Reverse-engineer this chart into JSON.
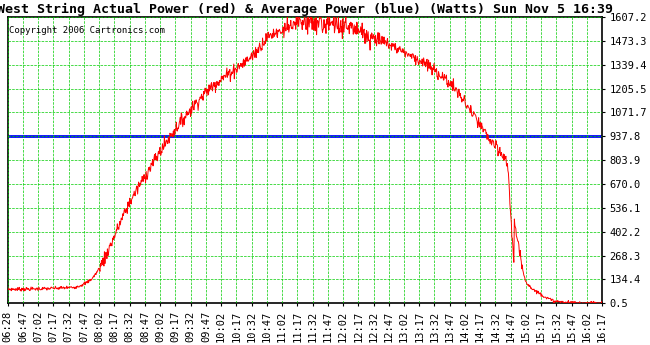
{
  "title": "West String Actual Power (red) & Average Power (blue) (Watts) Sun Nov 5 16:39",
  "copyright": "Copyright 2006 Cartronics.com",
  "y_ticks": [
    0.5,
    134.4,
    268.3,
    402.2,
    536.1,
    670.0,
    803.9,
    937.8,
    1071.7,
    1205.5,
    1339.4,
    1473.3,
    1607.2
  ],
  "y_min": 0.5,
  "y_max": 1607.2,
  "avg_power": 937.8,
  "x_labels": [
    "06:28",
    "06:47",
    "07:02",
    "07:17",
    "07:32",
    "07:47",
    "08:02",
    "08:17",
    "08:32",
    "08:47",
    "09:02",
    "09:17",
    "09:32",
    "09:47",
    "10:02",
    "10:17",
    "10:32",
    "10:47",
    "11:02",
    "11:17",
    "11:32",
    "11:47",
    "12:02",
    "12:17",
    "12:32",
    "12:47",
    "13:02",
    "13:17",
    "13:32",
    "13:47",
    "14:02",
    "14:17",
    "14:32",
    "14:47",
    "15:02",
    "15:17",
    "15:32",
    "15:47",
    "16:02",
    "16:17"
  ],
  "red_line_color": "#ff0000",
  "blue_line_color": "#0000ff",
  "grid_color": "#00cc00",
  "background_color": "#ffffff",
  "title_fontsize": 9.5,
  "copyright_fontsize": 6.5,
  "tick_fontsize": 7.5
}
